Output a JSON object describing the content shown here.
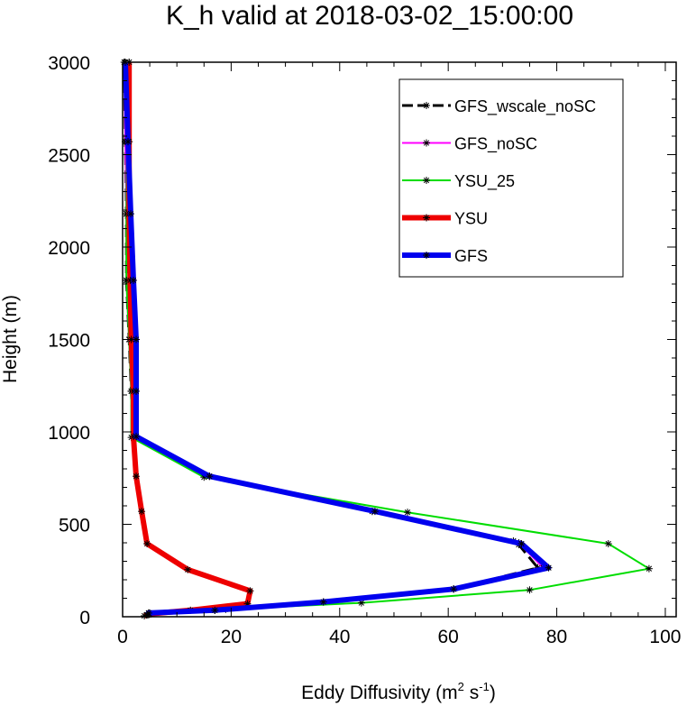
{
  "chart_data": {
    "type": "line",
    "title": "K_h valid at 2018-03-02_15:00:00",
    "xlabel": "Eddy Diffusivity",
    "xlabel_units": {
      "base1": "m",
      "sup1": "2",
      "base2": " s",
      "sup2": "-1"
    },
    "ylabel": "Height (m)",
    "xlim": [
      0,
      102
    ],
    "ylim": [
      0,
      3000
    ],
    "xticks": [
      0,
      20,
      40,
      60,
      80,
      100
    ],
    "yticks": [
      0,
      500,
      1000,
      1500,
      2000,
      2500,
      3000
    ],
    "legend_position": "top-right",
    "grid": false,
    "series": [
      {
        "name": "GFS_wscale_noSC",
        "color": "#000000",
        "style": "dashed",
        "width": 3,
        "points": [
          [
            4.5,
            10
          ],
          [
            4.8,
            20
          ],
          [
            17,
            35
          ],
          [
            37,
            80
          ],
          [
            61,
            150
          ],
          [
            76.5,
            265
          ],
          [
            73,
            390
          ],
          [
            72,
            410
          ],
          [
            46,
            570
          ],
          [
            16,
            760
          ],
          [
            2,
            975
          ],
          [
            1.6,
            1220
          ],
          [
            1.2,
            1500
          ],
          [
            0.7,
            1820
          ],
          [
            0.7,
            2180
          ],
          [
            0.5,
            2570
          ],
          [
            0.3,
            3000
          ]
        ]
      },
      {
        "name": "GFS_noSC",
        "color": "#ff00ff",
        "style": "solid",
        "width": 2,
        "points": [
          [
            4.5,
            10
          ],
          [
            4.8,
            20
          ],
          [
            17,
            35
          ],
          [
            37,
            80
          ],
          [
            61,
            150
          ],
          [
            77.5,
            265
          ],
          [
            73,
            400
          ],
          [
            46,
            570
          ],
          [
            16,
            760
          ],
          [
            2,
            975
          ],
          [
            1.6,
            1220
          ],
          [
            1.2,
            1500
          ],
          [
            0.7,
            1820
          ],
          [
            0.7,
            2180
          ],
          [
            0.5,
            2570
          ],
          [
            0.3,
            3000
          ]
        ]
      },
      {
        "name": "YSU_25",
        "color": "#00dd00",
        "style": "solid",
        "width": 2,
        "points": [
          [
            4.8,
            10
          ],
          [
            5,
            20
          ],
          [
            19,
            40
          ],
          [
            44,
            75
          ],
          [
            75,
            145
          ],
          [
            97,
            260
          ],
          [
            89.5,
            395
          ],
          [
            52.5,
            565
          ],
          [
            15,
            755
          ],
          [
            1.6,
            970
          ],
          [
            1.6,
            1220
          ],
          [
            1.2,
            1500
          ],
          [
            0.7,
            1820
          ],
          [
            0.7,
            2180
          ],
          [
            0.8,
            2570
          ],
          [
            1.2,
            3000
          ]
        ]
      },
      {
        "name": "YSU",
        "color": "#ee0000",
        "style": "solid",
        "width": 6,
        "points": [
          [
            4,
            5
          ],
          [
            5,
            15
          ],
          [
            12.5,
            35
          ],
          [
            23,
            70
          ],
          [
            23.5,
            140
          ],
          [
            12,
            255
          ],
          [
            4.5,
            395
          ],
          [
            3.5,
            570
          ],
          [
            2.5,
            760
          ],
          [
            2,
            975
          ],
          [
            2,
            1220
          ],
          [
            1.6,
            1500
          ],
          [
            1.4,
            1820
          ],
          [
            1.2,
            2180
          ],
          [
            1.2,
            2570
          ],
          [
            1.2,
            3000
          ]
        ]
      },
      {
        "name": "GFS",
        "color": "#0000ee",
        "style": "solid",
        "width": 6,
        "points": [
          [
            4.5,
            10
          ],
          [
            4.8,
            20
          ],
          [
            17,
            35
          ],
          [
            37,
            80
          ],
          [
            61,
            150
          ],
          [
            78.5,
            265
          ],
          [
            73.5,
            395
          ],
          [
            46.5,
            570
          ],
          [
            16,
            760
          ],
          [
            2.5,
            975
          ],
          [
            2.5,
            1220
          ],
          [
            2.5,
            1500
          ],
          [
            2,
            1820
          ],
          [
            1.5,
            2180
          ],
          [
            1,
            2570
          ],
          [
            0.5,
            3000
          ]
        ]
      }
    ]
  }
}
